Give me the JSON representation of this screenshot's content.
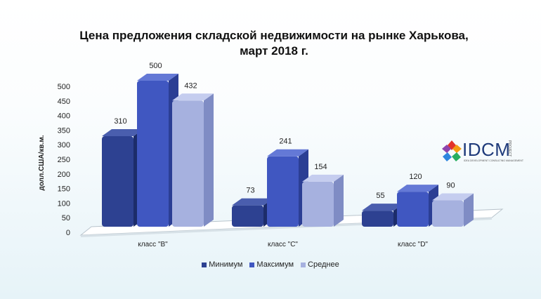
{
  "title": {
    "line1": "Цена предложения складской недвижимости на  рынке Харькова,",
    "line2": "март 2018 г."
  },
  "logo": {
    "text": "IDCM",
    "tagline": "IDEA DEVELOPMENT CONSULTING MANAGEMENT",
    "side": "PROJECT"
  },
  "colors": {
    "series_front": [
      "#2d4191",
      "#4057c1",
      "#a6b1df"
    ],
    "series_top": [
      "#4a5eae",
      "#6479d6",
      "#c5cdef"
    ],
    "series_side": [
      "#1c2c6a",
      "#2b3e94",
      "#7f8cc4"
    ]
  },
  "chart_data": {
    "type": "bar",
    "title": "Цена предложения складской недвижимости на  рынке Харькова, март 2018 г.",
    "ylabel": "долл.США/кв.м.",
    "xlabel": "",
    "categories": [
      "класс \"B\"",
      "класс \"C\"",
      "класс \"D\""
    ],
    "series": [
      {
        "name": "Минимум",
        "values": [
          310,
          73,
          55
        ]
      },
      {
        "name": "Максимум",
        "values": [
          500,
          241,
          120
        ]
      },
      {
        "name": "Среднее",
        "values": [
          432,
          154,
          90
        ]
      }
    ],
    "ylim": [
      0,
      500
    ],
    "yticks": [
      "0",
      "50",
      "100",
      "150",
      "200",
      "250",
      "300",
      "350",
      "400",
      "450",
      "500"
    ],
    "legend_position": "bottom",
    "grid": false
  }
}
